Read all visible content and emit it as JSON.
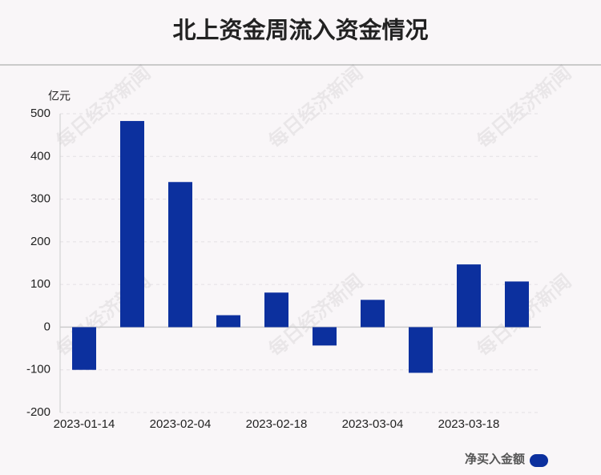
{
  "chart_data": {
    "type": "bar",
    "title": "北上资金周流入资金情况",
    "y_unit": "亿元",
    "watermark": "每日经济新闻",
    "categories": [
      "2023-01-14",
      null,
      "2023-02-04",
      null,
      "2023-02-18",
      null,
      "2023-03-04",
      null,
      "2023-03-18",
      null
    ],
    "series": [
      {
        "name": "净买入金额",
        "color": "#0c309e",
        "values": [
          -100,
          483,
          340,
          28,
          81,
          -43,
          64,
          -107,
          147,
          107
        ]
      }
    ],
    "ylim": [
      -200,
      500
    ],
    "yticks": [
      -200,
      -100,
      0,
      100,
      200,
      300,
      400,
      500
    ],
    "grid": true,
    "legend": "bottom-right"
  }
}
